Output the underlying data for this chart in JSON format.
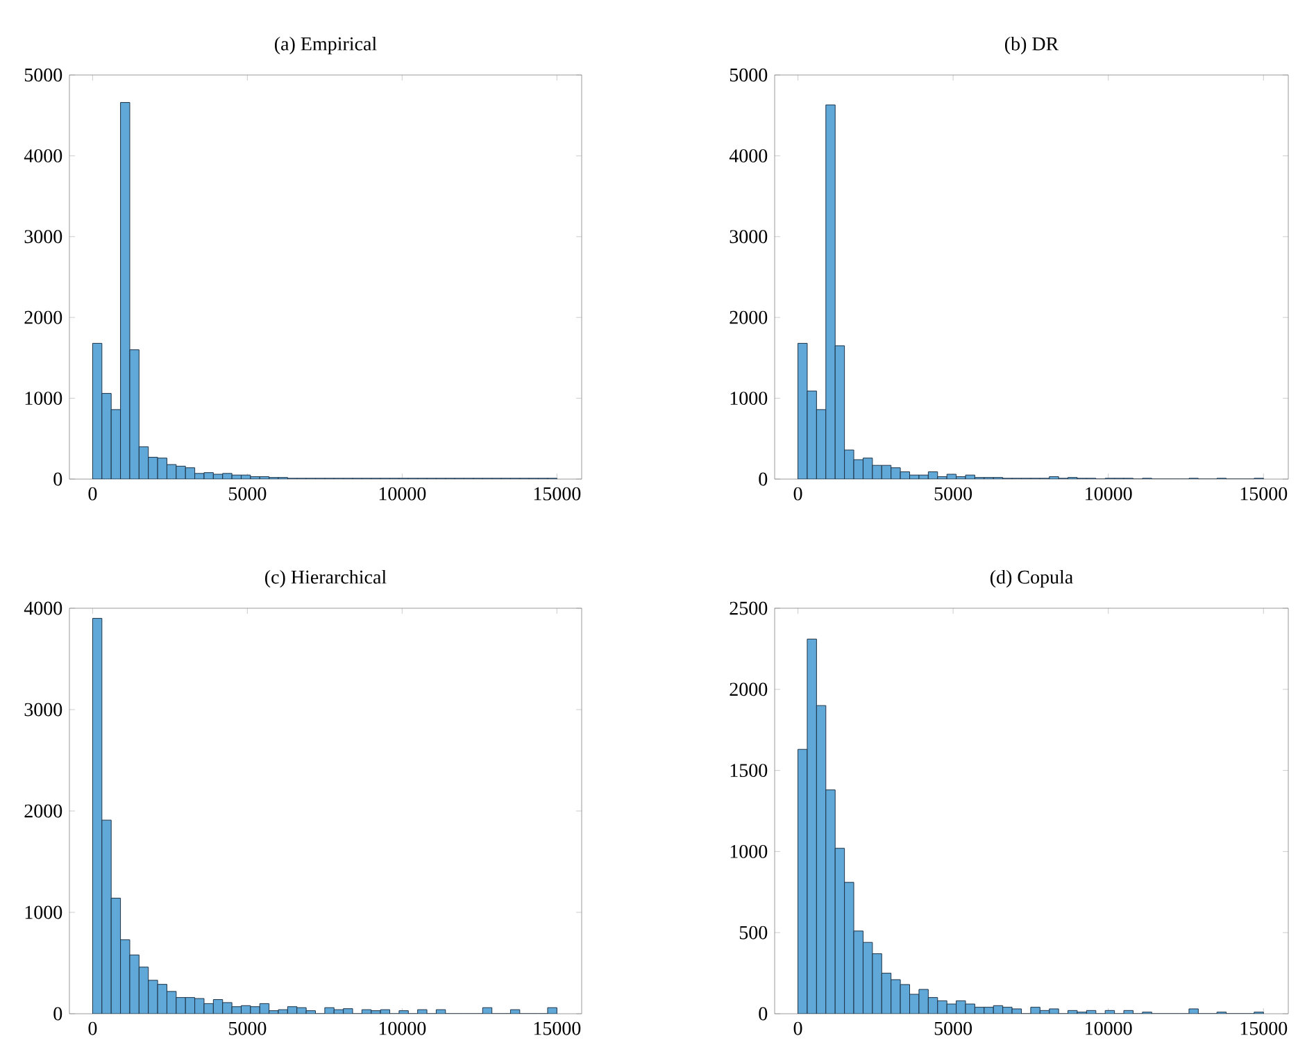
{
  "chart_data": [
    {
      "type": "histogram",
      "title": "(a) Empirical",
      "color": "#5fa8d8",
      "bins": [
        0,
        300,
        600,
        900,
        1200,
        1500,
        1800,
        2100,
        2400,
        2700,
        3000,
        3300,
        3600,
        3900,
        4200,
        4500,
        4800,
        5100,
        5400,
        5700,
        6000,
        6300,
        6600,
        6900,
        7200,
        7500,
        7800,
        8100,
        8400,
        8700,
        9000,
        9300,
        9600,
        9900,
        10200,
        10500,
        10800,
        11100,
        11400,
        11700,
        12000,
        12300,
        12600,
        12900,
        13200,
        13500,
        13800,
        14100,
        14400,
        14700,
        15000
      ],
      "values": [
        1680,
        1060,
        860,
        4660,
        1600,
        400,
        270,
        260,
        180,
        160,
        140,
        70,
        80,
        60,
        70,
        50,
        50,
        30,
        30,
        20,
        20,
        10,
        10,
        10,
        10,
        10,
        10,
        10,
        10,
        10,
        10,
        10,
        10,
        10,
        10,
        10,
        10,
        10,
        10,
        10,
        10,
        10,
        10,
        10,
        10,
        10,
        10,
        10,
        10,
        10
      ],
      "xlim": [
        -750,
        15800
      ],
      "xticks": [
        0,
        5000,
        10000,
        15000
      ],
      "ylim": [
        0,
        5000
      ],
      "yticks": [
        0,
        1000,
        2000,
        3000,
        4000,
        5000
      ],
      "grid": false
    },
    {
      "type": "histogram",
      "title": "(b) DR",
      "color": "#5fa8d8",
      "bins": [
        0,
        300,
        600,
        900,
        1200,
        1500,
        1800,
        2100,
        2400,
        2700,
        3000,
        3300,
        3600,
        3900,
        4200,
        4500,
        4800,
        5100,
        5400,
        5700,
        6000,
        6300,
        6600,
        6900,
        7200,
        7500,
        7800,
        8100,
        8400,
        8700,
        9000,
        9300,
        9600,
        9900,
        10200,
        10500,
        10800,
        11100,
        11400,
        11700,
        12000,
        12300,
        12600,
        12900,
        13200,
        13500,
        13800,
        14100,
        14400,
        14700,
        15000
      ],
      "values": [
        1680,
        1090,
        860,
        4630,
        1650,
        360,
        240,
        260,
        170,
        170,
        140,
        90,
        50,
        50,
        90,
        30,
        60,
        30,
        50,
        20,
        20,
        20,
        10,
        10,
        10,
        10,
        10,
        30,
        10,
        20,
        10,
        10,
        0,
        10,
        10,
        10,
        0,
        10,
        0,
        0,
        0,
        0,
        10,
        0,
        0,
        10,
        0,
        0,
        0,
        10
      ],
      "xlim": [
        -750,
        15800
      ],
      "xticks": [
        0,
        5000,
        10000,
        15000
      ],
      "ylim": [
        0,
        5000
      ],
      "yticks": [
        0,
        1000,
        2000,
        3000,
        4000,
        5000
      ],
      "grid": false
    },
    {
      "type": "histogram",
      "title": "(c) Hierarchical",
      "color": "#5fa8d8",
      "bins": [
        0,
        300,
        600,
        900,
        1200,
        1500,
        1800,
        2100,
        2400,
        2700,
        3000,
        3300,
        3600,
        3900,
        4200,
        4500,
        4800,
        5100,
        5400,
        5700,
        6000,
        6300,
        6600,
        6900,
        7200,
        7500,
        7800,
        8100,
        8400,
        8700,
        9000,
        9300,
        9600,
        9900,
        10200,
        10500,
        10800,
        11100,
        11400,
        11700,
        12000,
        12300,
        12600,
        12900,
        13200,
        13500,
        13800,
        14100,
        14400,
        14700,
        15000
      ],
      "values": [
        3900,
        1910,
        1140,
        730,
        580,
        460,
        330,
        290,
        220,
        160,
        160,
        150,
        100,
        140,
        110,
        70,
        80,
        70,
        100,
        30,
        40,
        70,
        60,
        30,
        0,
        60,
        40,
        50,
        0,
        40,
        30,
        40,
        0,
        30,
        0,
        40,
        0,
        40,
        0,
        0,
        0,
        0,
        60,
        0,
        0,
        40,
        0,
        0,
        0,
        60
      ],
      "xlim": [
        -750,
        15800
      ],
      "xticks": [
        0,
        5000,
        10000,
        15000
      ],
      "ylim": [
        0,
        4000
      ],
      "yticks": [
        0,
        1000,
        2000,
        3000,
        4000
      ],
      "grid": false
    },
    {
      "type": "histogram",
      "title": "(d) Copula",
      "color": "#5fa8d8",
      "bins": [
        0,
        300,
        600,
        900,
        1200,
        1500,
        1800,
        2100,
        2400,
        2700,
        3000,
        3300,
        3600,
        3900,
        4200,
        4500,
        4800,
        5100,
        5400,
        5700,
        6000,
        6300,
        6600,
        6900,
        7200,
        7500,
        7800,
        8100,
        8400,
        8700,
        9000,
        9300,
        9600,
        9900,
        10200,
        10500,
        10800,
        11100,
        11400,
        11700,
        12000,
        12300,
        12600,
        12900,
        13200,
        13500,
        13800,
        14100,
        14400,
        14700,
        15000
      ],
      "values": [
        1630,
        2310,
        1900,
        1380,
        1020,
        810,
        510,
        440,
        370,
        250,
        210,
        180,
        120,
        150,
        100,
        80,
        60,
        80,
        60,
        40,
        40,
        50,
        40,
        30,
        0,
        40,
        20,
        30,
        0,
        20,
        10,
        20,
        0,
        20,
        0,
        20,
        0,
        10,
        0,
        0,
        0,
        0,
        30,
        0,
        0,
        10,
        0,
        0,
        0,
        10
      ],
      "xlim": [
        -750,
        15800
      ],
      "xticks": [
        0,
        5000,
        10000,
        15000
      ],
      "ylim": [
        0,
        2500
      ],
      "yticks": [
        0,
        500,
        1000,
        1500,
        2000,
        2500
      ],
      "grid": false
    }
  ]
}
